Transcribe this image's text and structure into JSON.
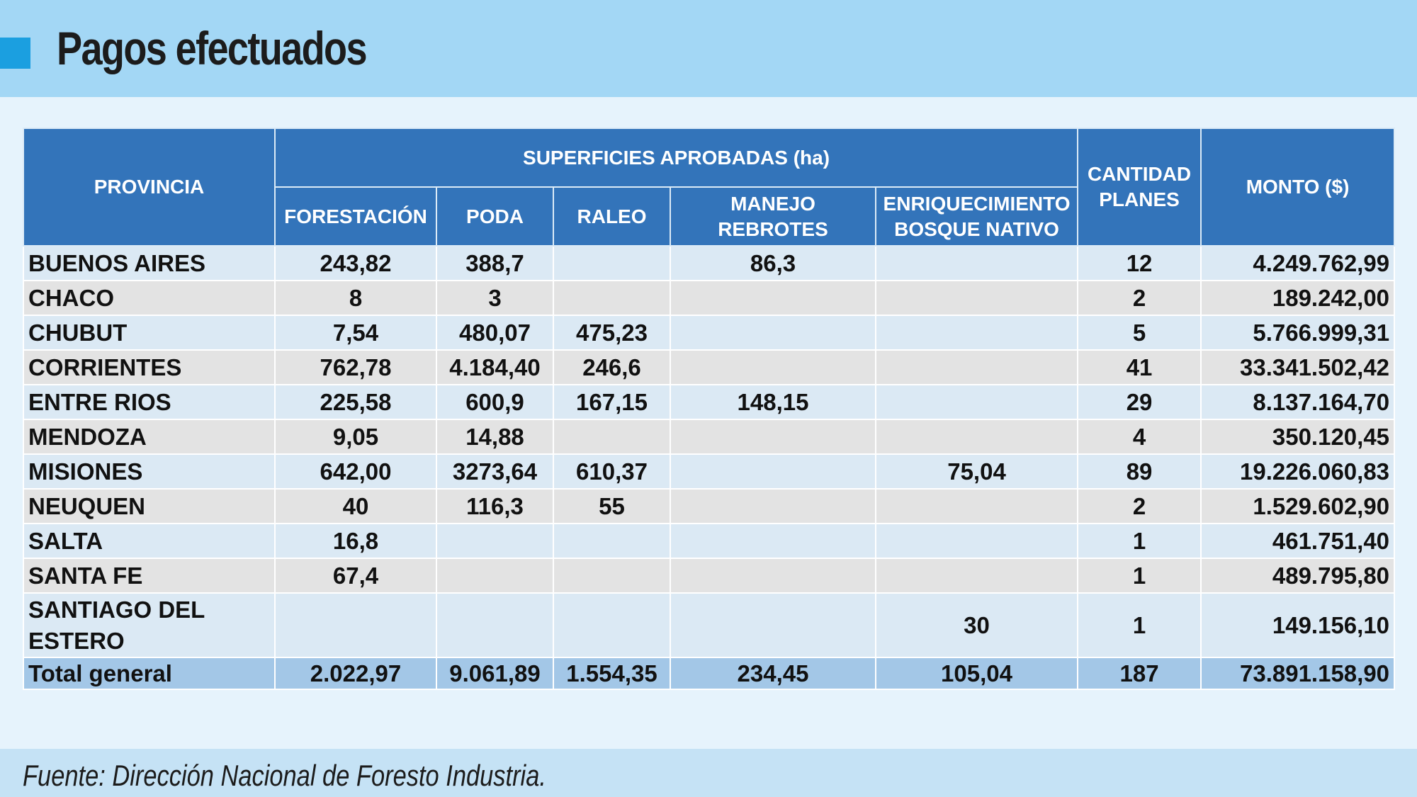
{
  "title": "Pagos efectuados",
  "colors": {
    "header_band": "#a3d7f5",
    "marker": "#1b9fe0",
    "table_header": "#3374ba",
    "row_light": "#dbe9f4",
    "row_gray": "#e3e3e3",
    "total_row": "#a3c7e7"
  },
  "table": {
    "headers": {
      "provincia": "PROVINCIA",
      "superficies": "SUPERFICIES APROBADAS (ha)",
      "forestacion": "FORESTACIÓN",
      "poda": "PODA",
      "raleo": "RALEO",
      "manejo": "MANEJO REBROTES",
      "enriquecimiento_l1": "ENRIQUECIMIENTO",
      "enriquecimiento_l2": "BOSQUE NATIVO",
      "cantidad_l1": "CANTIDAD",
      "cantidad_l2": "PLANES",
      "monto": "MONTO ($)"
    },
    "rows": [
      {
        "provincia": "BUENOS AIRES",
        "forestacion": "243,82",
        "poda": "388,7",
        "raleo": "",
        "manejo": "86,3",
        "enriquecimiento": "",
        "cantidad": "12",
        "monto": "4.249.762,99"
      },
      {
        "provincia": "CHACO",
        "forestacion": "8",
        "poda": "3",
        "raleo": "",
        "manejo": "",
        "enriquecimiento": "",
        "cantidad": "2",
        "monto": "189.242,00"
      },
      {
        "provincia": "CHUBUT",
        "forestacion": "7,54",
        "poda": "480,07",
        "raleo": "475,23",
        "manejo": "",
        "enriquecimiento": "",
        "cantidad": "5",
        "monto": "5.766.999,31"
      },
      {
        "provincia": "CORRIENTES",
        "forestacion": "762,78",
        "poda": "4.184,40",
        "raleo": "246,6",
        "manejo": "",
        "enriquecimiento": "",
        "cantidad": "41",
        "monto": "33.341.502,42"
      },
      {
        "provincia": "ENTRE RIOS",
        "forestacion": "225,58",
        "poda": "600,9",
        "raleo": "167,15",
        "manejo": "148,15",
        "enriquecimiento": "",
        "cantidad": "29",
        "monto": "8.137.164,70"
      },
      {
        "provincia": "MENDOZA",
        "forestacion": "9,05",
        "poda": "14,88",
        "raleo": "",
        "manejo": "",
        "enriquecimiento": "",
        "cantidad": "4",
        "monto": "350.120,45"
      },
      {
        "provincia": "MISIONES",
        "forestacion": "642,00",
        "poda": "3273,64",
        "raleo": "610,37",
        "manejo": "",
        "enriquecimiento": "75,04",
        "cantidad": "89",
        "monto": "19.226.060,83"
      },
      {
        "provincia": "NEUQUEN",
        "forestacion": "40",
        "poda": "116,3",
        "raleo": "55",
        "manejo": "",
        "enriquecimiento": "",
        "cantidad": "2",
        "monto": "1.529.602,90"
      },
      {
        "provincia": "SALTA",
        "forestacion": "16,8",
        "poda": "",
        "raleo": "",
        "manejo": "",
        "enriquecimiento": "",
        "cantidad": "1",
        "monto": "461.751,40"
      },
      {
        "provincia": "SANTA FE",
        "forestacion": "67,4",
        "poda": "",
        "raleo": "",
        "manejo": "",
        "enriquecimiento": "",
        "cantidad": "1",
        "monto": "489.795,80"
      },
      {
        "provincia": "SANTIAGO DEL ESTERO",
        "forestacion": "",
        "poda": "",
        "raleo": "",
        "manejo": "",
        "enriquecimiento": "30",
        "cantidad": "1",
        "monto": "149.156,10"
      }
    ],
    "total": {
      "provincia": "Total general",
      "forestacion": "2.022,97",
      "poda": "9.061,89",
      "raleo": "1.554,35",
      "manejo": "234,45",
      "enriquecimiento": "105,04",
      "cantidad": "187",
      "monto": "73.891.158,90"
    }
  },
  "source": "Fuente: Dirección Nacional de Foresto Industria."
}
